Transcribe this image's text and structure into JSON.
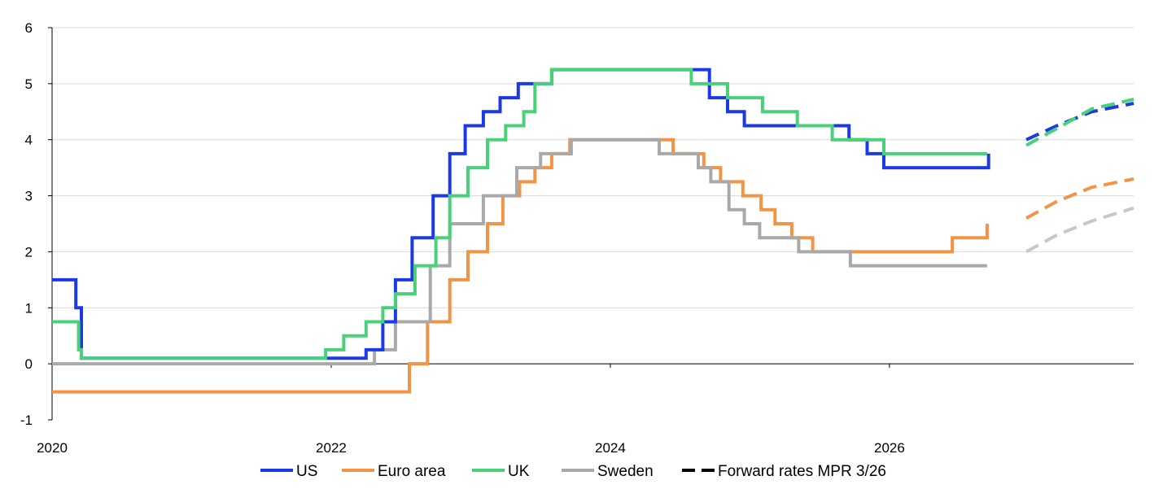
{
  "chart_data": {
    "type": "line",
    "title": "",
    "xlabel": "",
    "ylabel": "",
    "xlim": [
      2020,
      2027.75
    ],
    "ylim": [
      -1,
      6
    ],
    "x_ticks": [
      2020,
      2022,
      2024,
      2026
    ],
    "x_tick_labels": [
      "2020",
      "2022",
      "2024",
      "2026"
    ],
    "y_ticks": [
      -1,
      0,
      1,
      2,
      3,
      4,
      5,
      6
    ],
    "y_tick_labels": [
      "-1",
      "0",
      "1",
      "2",
      "3",
      "4",
      "5",
      "6"
    ],
    "grid": "horizontal",
    "legend_position": "bottom",
    "series": [
      {
        "name": "US",
        "color": "#1a3ae8",
        "style": "step",
        "points": [
          [
            2020.0,
            1.5
          ],
          [
            2020.17,
            1.5
          ],
          [
            2020.17,
            1.0
          ],
          [
            2020.21,
            1.0
          ],
          [
            2020.21,
            0.1
          ],
          [
            2022.25,
            0.1
          ],
          [
            2022.25,
            0.25
          ],
          [
            2022.37,
            0.25
          ],
          [
            2022.37,
            0.75
          ],
          [
            2022.46,
            0.75
          ],
          [
            2022.46,
            1.5
          ],
          [
            2022.58,
            1.5
          ],
          [
            2022.58,
            2.25
          ],
          [
            2022.73,
            2.25
          ],
          [
            2022.73,
            3.0
          ],
          [
            2022.85,
            3.0
          ],
          [
            2022.85,
            3.75
          ],
          [
            2022.96,
            3.75
          ],
          [
            2022.96,
            4.25
          ],
          [
            2023.09,
            4.25
          ],
          [
            2023.09,
            4.5
          ],
          [
            2023.21,
            4.5
          ],
          [
            2023.21,
            4.75
          ],
          [
            2023.34,
            4.75
          ],
          [
            2023.34,
            5.0
          ],
          [
            2023.58,
            5.0
          ],
          [
            2023.58,
            5.25
          ],
          [
            2024.71,
            5.25
          ],
          [
            2024.71,
            4.75
          ],
          [
            2024.84,
            4.75
          ],
          [
            2024.84,
            4.5
          ],
          [
            2024.96,
            4.5
          ],
          [
            2024.96,
            4.25
          ],
          [
            2025.71,
            4.25
          ],
          [
            2025.71,
            4.0
          ],
          [
            2025.84,
            4.0
          ],
          [
            2025.84,
            3.75
          ],
          [
            2025.96,
            3.75
          ],
          [
            2025.96,
            3.5
          ],
          [
            2026.71,
            3.5
          ],
          [
            2026.71,
            3.75
          ]
        ]
      },
      {
        "name": "Euro area",
        "color": "#f39445",
        "style": "step",
        "points": [
          [
            2020.0,
            -0.5
          ],
          [
            2022.56,
            -0.5
          ],
          [
            2022.56,
            0.0
          ],
          [
            2022.69,
            0.0
          ],
          [
            2022.69,
            0.75
          ],
          [
            2022.85,
            0.75
          ],
          [
            2022.85,
            1.5
          ],
          [
            2022.98,
            1.5
          ],
          [
            2022.98,
            2.0
          ],
          [
            2023.12,
            2.0
          ],
          [
            2023.12,
            2.5
          ],
          [
            2023.23,
            2.5
          ],
          [
            2023.23,
            3.0
          ],
          [
            2023.35,
            3.0
          ],
          [
            2023.35,
            3.25
          ],
          [
            2023.46,
            3.25
          ],
          [
            2023.46,
            3.5
          ],
          [
            2023.58,
            3.5
          ],
          [
            2023.58,
            3.75
          ],
          [
            2023.71,
            3.75
          ],
          [
            2023.71,
            4.0
          ],
          [
            2024.45,
            4.0
          ],
          [
            2024.45,
            3.75
          ],
          [
            2024.67,
            3.75
          ],
          [
            2024.67,
            3.5
          ],
          [
            2024.79,
            3.5
          ],
          [
            2024.79,
            3.25
          ],
          [
            2024.95,
            3.25
          ],
          [
            2024.95,
            3.0
          ],
          [
            2025.08,
            3.0
          ],
          [
            2025.08,
            2.75
          ],
          [
            2025.18,
            2.75
          ],
          [
            2025.18,
            2.5
          ],
          [
            2025.3,
            2.5
          ],
          [
            2025.3,
            2.25
          ],
          [
            2025.45,
            2.25
          ],
          [
            2025.45,
            2.0
          ],
          [
            2026.45,
            2.0
          ],
          [
            2026.45,
            2.25
          ],
          [
            2026.7,
            2.25
          ],
          [
            2026.7,
            2.5
          ]
        ]
      },
      {
        "name": "UK",
        "color": "#49d17a",
        "style": "step",
        "points": [
          [
            2020.0,
            0.75
          ],
          [
            2020.19,
            0.75
          ],
          [
            2020.19,
            0.25
          ],
          [
            2020.21,
            0.25
          ],
          [
            2020.21,
            0.1
          ],
          [
            2021.96,
            0.1
          ],
          [
            2021.96,
            0.25
          ],
          [
            2022.09,
            0.25
          ],
          [
            2022.09,
            0.5
          ],
          [
            2022.25,
            0.5
          ],
          [
            2022.25,
            0.75
          ],
          [
            2022.37,
            0.75
          ],
          [
            2022.37,
            1.0
          ],
          [
            2022.46,
            1.0
          ],
          [
            2022.46,
            1.25
          ],
          [
            2022.6,
            1.25
          ],
          [
            2022.6,
            1.75
          ],
          [
            2022.75,
            1.75
          ],
          [
            2022.75,
            2.25
          ],
          [
            2022.85,
            2.25
          ],
          [
            2022.85,
            3.0
          ],
          [
            2022.98,
            3.0
          ],
          [
            2022.98,
            3.5
          ],
          [
            2023.12,
            3.5
          ],
          [
            2023.12,
            4.0
          ],
          [
            2023.25,
            4.0
          ],
          [
            2023.25,
            4.25
          ],
          [
            2023.38,
            4.25
          ],
          [
            2023.38,
            4.5
          ],
          [
            2023.46,
            4.5
          ],
          [
            2023.46,
            5.0
          ],
          [
            2023.58,
            5.0
          ],
          [
            2023.58,
            5.25
          ],
          [
            2024.58,
            5.25
          ],
          [
            2024.58,
            5.0
          ],
          [
            2024.84,
            5.0
          ],
          [
            2024.84,
            4.75
          ],
          [
            2025.09,
            4.75
          ],
          [
            2025.09,
            4.5
          ],
          [
            2025.34,
            4.5
          ],
          [
            2025.34,
            4.25
          ],
          [
            2025.59,
            4.25
          ],
          [
            2025.59,
            4.0
          ],
          [
            2025.96,
            4.0
          ],
          [
            2025.96,
            3.75
          ],
          [
            2026.7,
            3.75
          ]
        ]
      },
      {
        "name": "Sweden",
        "color": "#a9a9a9",
        "style": "step",
        "points": [
          [
            2020.0,
            0.0
          ],
          [
            2022.31,
            0.0
          ],
          [
            2022.31,
            0.25
          ],
          [
            2022.46,
            0.25
          ],
          [
            2022.46,
            0.75
          ],
          [
            2022.71,
            0.75
          ],
          [
            2022.71,
            1.75
          ],
          [
            2022.85,
            1.75
          ],
          [
            2022.85,
            2.5
          ],
          [
            2023.09,
            2.5
          ],
          [
            2023.09,
            3.0
          ],
          [
            2023.33,
            3.0
          ],
          [
            2023.33,
            3.5
          ],
          [
            2023.5,
            3.5
          ],
          [
            2023.5,
            3.75
          ],
          [
            2023.72,
            3.75
          ],
          [
            2023.72,
            4.0
          ],
          [
            2024.35,
            4.0
          ],
          [
            2024.35,
            3.75
          ],
          [
            2024.63,
            3.75
          ],
          [
            2024.63,
            3.5
          ],
          [
            2024.72,
            3.5
          ],
          [
            2024.72,
            3.25
          ],
          [
            2024.85,
            3.25
          ],
          [
            2024.85,
            2.75
          ],
          [
            2024.96,
            2.75
          ],
          [
            2024.96,
            2.5
          ],
          [
            2025.07,
            2.5
          ],
          [
            2025.07,
            2.25
          ],
          [
            2025.35,
            2.25
          ],
          [
            2025.35,
            2.0
          ],
          [
            2025.72,
            2.0
          ],
          [
            2025.72,
            1.75
          ],
          [
            2026.7,
            1.75
          ]
        ]
      },
      {
        "name": "Forward rates MPR 3/26",
        "color": "#000000",
        "style": "dashed",
        "legend_only": true,
        "points": []
      }
    ],
    "forwards": [
      {
        "of": "US",
        "color": "#1a3ae8",
        "points": [
          [
            2026.98,
            4.0
          ],
          [
            2027.2,
            4.25
          ],
          [
            2027.45,
            4.5
          ],
          [
            2027.75,
            4.65
          ]
        ]
      },
      {
        "of": "UK",
        "color": "#49d17a",
        "points": [
          [
            2026.98,
            3.9
          ],
          [
            2027.2,
            4.2
          ],
          [
            2027.45,
            4.55
          ],
          [
            2027.75,
            4.72
          ]
        ]
      },
      {
        "of": "Euro area",
        "color": "#f39445",
        "points": [
          [
            2026.98,
            2.6
          ],
          [
            2027.2,
            2.9
          ],
          [
            2027.45,
            3.15
          ],
          [
            2027.75,
            3.3
          ]
        ]
      },
      {
        "of": "Sweden",
        "color": "#c8c8c8",
        "points": [
          [
            2026.98,
            2.0
          ],
          [
            2027.2,
            2.3
          ],
          [
            2027.45,
            2.55
          ],
          [
            2027.75,
            2.78
          ]
        ]
      }
    ]
  }
}
